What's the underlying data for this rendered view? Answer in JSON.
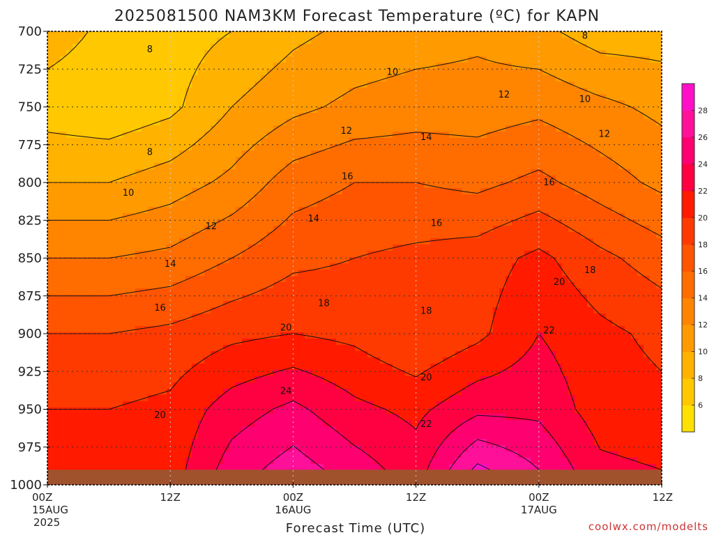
{
  "chart_data": {
    "type": "heatmap",
    "title": "2025081500 NAM3KM Forecast Temperature (ºC) for KAPN",
    "xlabel": "Forecast Time (UTC)",
    "ylabel": "",
    "credit": "coolwx.com/modelts",
    "y_axis": {
      "unit": "hPa",
      "ticks": [
        700,
        725,
        750,
        775,
        800,
        825,
        850,
        875,
        900,
        925,
        950,
        975,
        1000
      ],
      "ylim": [
        700,
        1000
      ]
    },
    "x_axis": {
      "hours": [
        0,
        12,
        24,
        36,
        48,
        60
      ],
      "ticks": [
        {
          "hour": 0,
          "time": "00Z",
          "date": "15AUG",
          "year": "2025"
        },
        {
          "hour": 12,
          "time": "12Z",
          "date": "",
          "year": ""
        },
        {
          "hour": 24,
          "time": "00Z",
          "date": "16AUG",
          "year": ""
        },
        {
          "hour": 36,
          "time": "12Z",
          "date": "",
          "year": ""
        },
        {
          "hour": 48,
          "time": "00Z",
          "date": "17AUG",
          "year": ""
        },
        {
          "hour": 60,
          "time": "12Z",
          "date": "",
          "year": ""
        }
      ],
      "xlim": [
        0,
        60
      ]
    },
    "contour_interval": 2,
    "colorbar": {
      "ticks": [
        6,
        8,
        10,
        12,
        14,
        16,
        18,
        20,
        22,
        24,
        26,
        28
      ],
      "range": [
        4,
        30
      ],
      "colors": [
        "#ffe000",
        "#ffc800",
        "#ffb200",
        "#ff9b00",
        "#ff8400",
        "#ff6c00",
        "#ff5400",
        "#ff3a00",
        "#ff1a00",
        "#ff0040",
        "#ff0070",
        "#ff1098",
        "#ff10c8"
      ]
    },
    "surface_pressure_hpa": 990,
    "grid": true,
    "field": {
      "hours": [
        0,
        6,
        12,
        18,
        24,
        30,
        36,
        42,
        48,
        54,
        60
      ],
      "levels": [
        700,
        750,
        800,
        850,
        900,
        950,
        990
      ],
      "temperature_c": [
        [
          9.0,
          7.5,
          7.0,
          8.0,
          9.5,
          10.5,
          11.0,
          11.5,
          10.5,
          9.0,
          9.0
        ],
        [
          7.0,
          6.5,
          7.5,
          10.0,
          11.5,
          12.5,
          13.0,
          13.0,
          13.5,
          12.5,
          11.5
        ],
        [
          10.0,
          10.0,
          11.0,
          12.5,
          15.0,
          16.0,
          16.0,
          15.5,
          16.5,
          15.0,
          13.5
        ],
        [
          14.0,
          14.0,
          14.5,
          16.0,
          17.5,
          18.0,
          18.5,
          19.0,
          20.5,
          18.5,
          17.0
        ],
        [
          18.0,
          18.0,
          18.5,
          19.5,
          20.0,
          19.5,
          18.0,
          19.5,
          22.0,
          20.5,
          19.5
        ],
        [
          20.0,
          20.0,
          20.5,
          23.0,
          24.5,
          22.5,
          21.5,
          23.5,
          23.5,
          21.0,
          20.5
        ],
        [
          22.0,
          21.5,
          21.0,
          25.0,
          27.0,
          25.0,
          23.0,
          28.5,
          26.0,
          22.5,
          22.0
        ]
      ]
    },
    "contour_labels": [
      {
        "value": "8",
        "hour": 10.0,
        "level": 712
      },
      {
        "value": "8",
        "hour": 10.0,
        "level": 780
      },
      {
        "value": "8",
        "hour": 52.5,
        "level": 703
      },
      {
        "value": "10",
        "hour": 7.9,
        "level": 807
      },
      {
        "value": "10",
        "hour": 33.7,
        "level": 727
      },
      {
        "value": "10",
        "hour": 52.5,
        "level": 745
      },
      {
        "value": "12",
        "hour": 16.0,
        "level": 829
      },
      {
        "value": "12",
        "hour": 29.2,
        "level": 766
      },
      {
        "value": "12",
        "hour": 44.6,
        "level": 742
      },
      {
        "value": "12",
        "hour": 54.4,
        "level": 768
      },
      {
        "value": "14",
        "hour": 12.0,
        "level": 854
      },
      {
        "value": "14",
        "hour": 26.0,
        "level": 824
      },
      {
        "value": "14",
        "hour": 37.0,
        "level": 770
      },
      {
        "value": "16",
        "hour": 11.0,
        "level": 883
      },
      {
        "value": "16",
        "hour": 29.3,
        "level": 796
      },
      {
        "value": "16",
        "hour": 38.0,
        "level": 827
      },
      {
        "value": "16",
        "hour": 49.0,
        "level": 800
      },
      {
        "value": "18",
        "hour": 27.0,
        "level": 880
      },
      {
        "value": "18",
        "hour": 37.0,
        "level": 885
      },
      {
        "value": "18",
        "hour": 53.0,
        "level": 858
      },
      {
        "value": "20",
        "hour": 23.3,
        "level": 896
      },
      {
        "value": "20",
        "hour": 11.0,
        "level": 954
      },
      {
        "value": "20",
        "hour": 37.0,
        "level": 929
      },
      {
        "value": "20",
        "hour": 50.0,
        "level": 866
      },
      {
        "value": "22",
        "hour": 37.0,
        "level": 960
      },
      {
        "value": "22",
        "hour": 49.0,
        "level": 898
      },
      {
        "value": "24",
        "hour": 23.3,
        "level": 938
      }
    ]
  }
}
